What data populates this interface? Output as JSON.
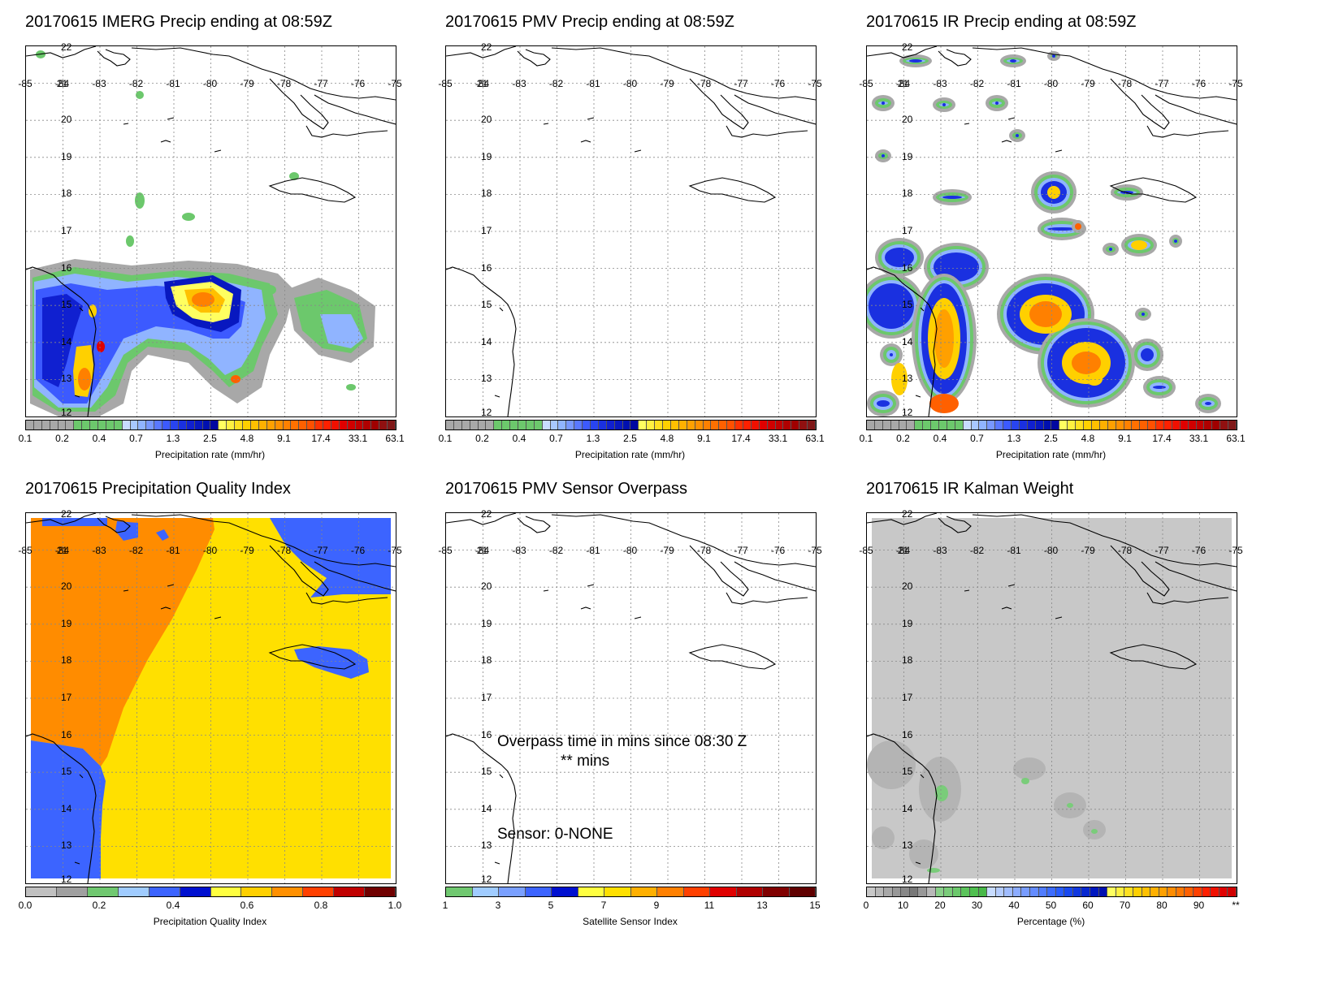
{
  "panels": [
    {
      "title": "20170615 IMERG Precip ending at 08:59Z",
      "cbar": "precip",
      "cbar_title": "Precipitation rate (mm/hr)"
    },
    {
      "title": "20170615 PMV Precip ending at 08:59Z",
      "cbar": "precip",
      "cbar_title": "Precipitation rate (mm/hr)"
    },
    {
      "title": "20170615 IR Precip ending at 08:59Z",
      "cbar": "precip",
      "cbar_title": "Precipitation rate (mm/hr)"
    },
    {
      "title": "20170615 Precipitation Quality Index",
      "cbar": "quality",
      "cbar_title": "Precipitation Quality Index"
    },
    {
      "title": "20170615 PMV Sensor Overpass",
      "cbar": "sensor",
      "cbar_title": "Satellite Sensor Index"
    },
    {
      "title": "20170615 IR Kalman Weight",
      "cbar": "percent",
      "cbar_title": "Percentage (%)"
    }
  ],
  "lon_labels": [
    "-85",
    "-84",
    "-83",
    "-82",
    "-81",
    "-80",
    "-79",
    "-78",
    "-77",
    "-76",
    "-75"
  ],
  "lat_labels": [
    "22",
    "21",
    "20",
    "19",
    "18",
    "17",
    "16",
    "15",
    "14",
    "13",
    "12"
  ],
  "colorbars": {
    "precip": {
      "ticks": [
        "0.1",
        "0.2",
        "0.4",
        "0.7",
        "1.3",
        "2.5",
        "4.8",
        "9.1",
        "17.4",
        "33.1",
        "63.1"
      ],
      "colors": [
        "#a8a8a8",
        "#a8a8a8",
        "#a8a8a8",
        "#a8a8a8",
        "#a8a8a8",
        "#a8a8a8",
        "#6cc86c",
        "#6cc86c",
        "#6cc86c",
        "#6cc86c",
        "#6cc86c",
        "#6cc86c",
        "#c8dcff",
        "#a8c8ff",
        "#90b4ff",
        "#7898ff",
        "#5a78ff",
        "#3c5aff",
        "#2844f0",
        "#1a30e0",
        "#1020d0",
        "#0818c0",
        "#0010b0",
        "#0008a0",
        "#ffff60",
        "#fff040",
        "#ffe020",
        "#ffd000",
        "#ffc000",
        "#ffb000",
        "#ffa000",
        "#ff9000",
        "#ff8000",
        "#ff7000",
        "#ff6000",
        "#ff5000",
        "#ff3000",
        "#ff2000",
        "#f01000",
        "#e00000",
        "#d00000",
        "#c00000",
        "#b00000",
        "#a00000",
        "#901010",
        "#801818"
      ]
    },
    "quality": {
      "ticks": [
        "0.0",
        "0.2",
        "0.4",
        "0.6",
        "0.8",
        "1.0"
      ],
      "colors": [
        "#c0c0c0",
        "#a0a0a0",
        "#70c870",
        "#a0ccff",
        "#3c64ff",
        "#0010d0",
        "#ffff40",
        "#ffd000",
        "#ff9000",
        "#ff4000",
        "#c00000",
        "#700000"
      ]
    },
    "sensor": {
      "ticks": [
        "1",
        "3",
        "5",
        "7",
        "9",
        "11",
        "13",
        "15"
      ],
      "colors": [
        "#70c870",
        "#a0ccff",
        "#7aa0ff",
        "#3c64ff",
        "#0010d0",
        "#ffff40",
        "#ffe000",
        "#ffb000",
        "#ff8000",
        "#ff4000",
        "#e00000",
        "#b00000",
        "#800000",
        "#600000"
      ]
    },
    "percent": {
      "ticks": [
        "0",
        "10",
        "20",
        "30",
        "40",
        "50",
        "60",
        "70",
        "80",
        "90",
        "**"
      ],
      "colors": [
        "#c8c8c8",
        "#b8b8b8",
        "#a8a8a8",
        "#989898",
        "#888888",
        "#787878",
        "#989898",
        "#b8b8b8",
        "#8ad08a",
        "#7acc7a",
        "#6cc86c",
        "#5cc45c",
        "#50c050",
        "#48b848",
        "#c8dcff",
        "#b4ccff",
        "#a0bcff",
        "#8cacff",
        "#789cff",
        "#648cff",
        "#507cff",
        "#3c6cff",
        "#285cff",
        "#1848f0",
        "#1038e0",
        "#0828d0",
        "#0018c0",
        "#0010b0",
        "#ffff60",
        "#fff040",
        "#ffe020",
        "#ffd000",
        "#ffc000",
        "#ffb000",
        "#ffa000",
        "#ff8c00",
        "#ff7800",
        "#ff6000",
        "#ff4000",
        "#ff2000",
        "#f01000",
        "#e00000",
        "#d00000"
      ]
    }
  },
  "overpass_text": {
    "line1": "Overpass time in mins since 08:30 Z",
    "line2": "** mins",
    "line3": "Sensor:   0-NONE"
  },
  "legend_colors": {
    "coast": "#000000",
    "grid": "#888888"
  }
}
